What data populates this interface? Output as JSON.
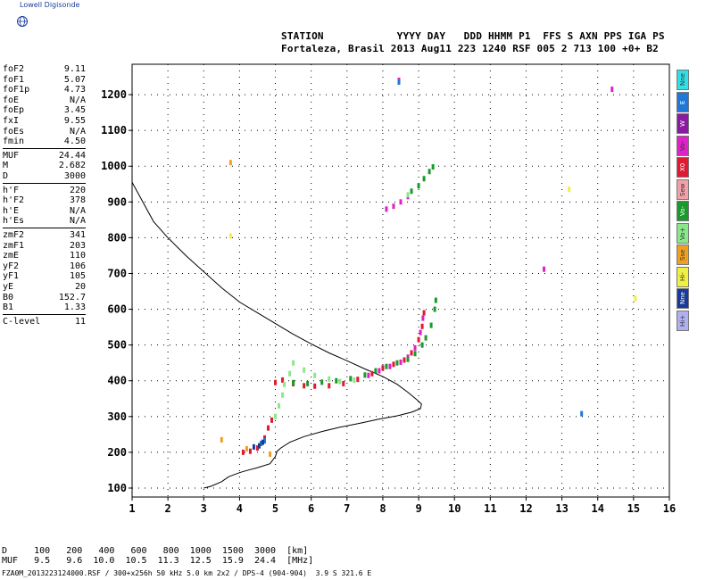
{
  "brand": "Lowell Digisonde",
  "header": {
    "line1": "STATION            YYYY DAY   DDD HHMM P1  FFS S AXN PPS IGA PS",
    "line2": "Fortaleza, Brasil 2013 Aug11 223 1240 RSF 005 2 713 100 +0+ B2"
  },
  "params": [
    {
      "label": "foF2",
      "value": "9.11"
    },
    {
      "label": "foF1",
      "value": "5.07"
    },
    {
      "label": "foF1p",
      "value": "4.73"
    },
    {
      "label": "foE",
      "value": "N/A"
    },
    {
      "label": "foEp",
      "value": "3.45"
    },
    {
      "label": "fxI",
      "value": "9.55"
    },
    {
      "label": "foEs",
      "value": "N/A"
    },
    {
      "label": "fmin",
      "value": "4.50"
    },
    {
      "label": "MUF",
      "value": "24.44"
    },
    {
      "label": "M",
      "value": "2.682"
    },
    {
      "label": "D",
      "value": "3000"
    },
    {
      "label": "h'F",
      "value": "220"
    },
    {
      "label": "h'F2",
      "value": "378"
    },
    {
      "label": "h'E",
      "value": "N/A"
    },
    {
      "label": "h'Es",
      "value": "N/A"
    },
    {
      "label": "zmF2",
      "value": "341"
    },
    {
      "label": "zmF1",
      "value": "203"
    },
    {
      "label": "zmE",
      "value": "110"
    },
    {
      "label": "yF2",
      "value": "106"
    },
    {
      "label": "yF1",
      "value": "105"
    },
    {
      "label": "yE",
      "value": "20"
    },
    {
      "label": "B0",
      "value": "152.7"
    },
    {
      "label": "B1",
      "value": "1.33"
    },
    {
      "label": "C-level",
      "value": "11"
    }
  ],
  "legend": [
    {
      "label": "Nne",
      "color": "#2fe0e8"
    },
    {
      "label": "E",
      "color": "#1f78d8"
    },
    {
      "label": "W",
      "color": "#8a1aa0"
    },
    {
      "label": "Vo-",
      "color": "#e020c8"
    },
    {
      "label": "X0",
      "color": "#e01a30"
    },
    {
      "label": "Sew",
      "color": "#f2a0a8"
    },
    {
      "label": "Vo-",
      "color": "#1a9a2a"
    },
    {
      "label": "Vo+",
      "color": "#8ae88a"
    },
    {
      "label": "Sse",
      "color": "#f0a020"
    },
    {
      "label": "Hi-",
      "color": "#f0f040"
    },
    {
      "label": "Nne",
      "color": "#1a3a9a"
    },
    {
      "label": "Hi+",
      "color": "#b0b0f0"
    }
  ],
  "footer": {
    "d_row": "D     100   200   400   600   800  1000  1500  3000  [km]",
    "muf_row": "MUF   9.5   9.6  10.0  10.5  11.3  12.5  15.9  24.4  [MHz]",
    "info": "FZA0M_2013223124000.RSF / 300+x256h 50 kHz 5.0 km 2x2 / DPS-4 (904-904)  3.9 S 321.6 E"
  },
  "chart_data": {
    "type": "scatter",
    "xlim": [
      1,
      16
    ],
    "ylim": [
      75,
      1285
    ],
    "x_ticks": [
      "1",
      "2",
      "3",
      "4",
      "5",
      "6",
      "7",
      "8",
      "9",
      "10",
      "11",
      "12",
      "13",
      "14",
      "15",
      "16"
    ],
    "y_ticks": [
      "100",
      "200",
      "300",
      "400",
      "500",
      "600",
      "700",
      "800",
      "900",
      "1000",
      "1100",
      "1200"
    ],
    "grid": true,
    "series": [
      {
        "color": "#e01a30",
        "points": [
          [
            4.1,
            200
          ],
          [
            4.3,
            203
          ],
          [
            4.5,
            212
          ],
          [
            4.7,
            240
          ],
          [
            4.8,
            268
          ],
          [
            4.9,
            290
          ],
          [
            5.0,
            395
          ],
          [
            5.2,
            402
          ],
          [
            5.5,
            392
          ],
          [
            5.8,
            386
          ],
          [
            6.1,
            385
          ],
          [
            6.5,
            386
          ],
          [
            6.9,
            392
          ],
          [
            7.3,
            404
          ],
          [
            7.7,
            420
          ],
          [
            8.0,
            436
          ],
          [
            8.3,
            446
          ],
          [
            8.6,
            458
          ],
          [
            8.8,
            478
          ],
          [
            9.0,
            515
          ],
          [
            9.1,
            552
          ],
          [
            9.15,
            590
          ]
        ]
      },
      {
        "color": "#e020c8",
        "points": [
          [
            7.6,
            415
          ],
          [
            7.9,
            428
          ],
          [
            8.2,
            440
          ],
          [
            8.5,
            452
          ],
          [
            8.7,
            466
          ],
          [
            8.9,
            492
          ],
          [
            9.05,
            535
          ],
          [
            9.12,
            575
          ],
          [
            8.1,
            880
          ],
          [
            8.3,
            888
          ],
          [
            8.5,
            900
          ],
          [
            8.7,
            915
          ],
          [
            8.45,
            1240
          ],
          [
            14.4,
            1215
          ],
          [
            12.5,
            712
          ]
        ]
      },
      {
        "color": "#1a9a2a",
        "points": [
          [
            5.5,
            395
          ],
          [
            5.9,
            392
          ],
          [
            6.3,
            396
          ],
          [
            6.7,
            400
          ],
          [
            7.1,
            406
          ],
          [
            7.5,
            416
          ],
          [
            7.8,
            428
          ],
          [
            8.1,
            440
          ],
          [
            8.4,
            450
          ],
          [
            8.7,
            460
          ],
          [
            8.9,
            476
          ],
          [
            9.1,
            500
          ],
          [
            9.2,
            520
          ],
          [
            9.35,
            555
          ],
          [
            9.45,
            600
          ],
          [
            9.48,
            625
          ],
          [
            8.8,
            930
          ],
          [
            9.0,
            945
          ],
          [
            9.15,
            965
          ],
          [
            9.3,
            985
          ],
          [
            9.4,
            998
          ]
        ]
      },
      {
        "color": "#8ae88a",
        "points": [
          [
            5.1,
            330
          ],
          [
            5.2,
            360
          ],
          [
            5.25,
            390
          ],
          [
            5.4,
            420
          ],
          [
            5.5,
            450
          ],
          [
            5.8,
            430
          ],
          [
            6.1,
            415
          ],
          [
            6.5,
            405
          ],
          [
            6.8,
            398
          ],
          [
            7.2,
            402
          ],
          [
            5.0,
            300
          ],
          [
            8.7,
            920
          ]
        ]
      },
      {
        "color": "#f0a020",
        "points": [
          [
            3.5,
            235
          ],
          [
            4.2,
            210
          ],
          [
            4.85,
            195
          ],
          [
            3.75,
            1010
          ]
        ]
      },
      {
        "color": "#1f78d8",
        "points": [
          [
            4.6,
            225
          ],
          [
            4.7,
            232
          ],
          [
            13.55,
            308
          ],
          [
            8.45,
            1235
          ]
        ]
      },
      {
        "color": "#1a3a9a",
        "points": [
          [
            4.4,
            215
          ],
          [
            4.55,
            218
          ],
          [
            4.65,
            228
          ]
        ]
      },
      {
        "color": "#f0f040",
        "points": [
          [
            3.75,
            805
          ],
          [
            13.2,
            935
          ],
          [
            15.05,
            630
          ]
        ]
      }
    ],
    "profile": {
      "color": "#000000",
      "points": [
        [
          1.0,
          955
        ],
        [
          1.3,
          900
        ],
        [
          1.6,
          845
        ],
        [
          2.0,
          800
        ],
        [
          2.5,
          750
        ],
        [
          3.0,
          705
        ],
        [
          3.5,
          660
        ],
        [
          4.0,
          620
        ],
        [
          4.5,
          590
        ],
        [
          5.0,
          560
        ],
        [
          5.5,
          530
        ],
        [
          6.0,
          503
        ],
        [
          6.5,
          478
        ],
        [
          7.0,
          456
        ],
        [
          7.5,
          433
        ],
        [
          8.0,
          412
        ],
        [
          8.4,
          390
        ],
        [
          8.7,
          368
        ],
        [
          8.95,
          347
        ],
        [
          9.08,
          335
        ],
        [
          9.05,
          322
        ],
        [
          8.8,
          312
        ],
        [
          8.4,
          302
        ],
        [
          7.9,
          293
        ],
        [
          7.4,
          282
        ],
        [
          6.8,
          270
        ],
        [
          6.3,
          258
        ],
        [
          5.8,
          244
        ],
        [
          5.4,
          228
        ],
        [
          5.15,
          212
        ],
        [
          5.05,
          203
        ],
        [
          5.0,
          188
        ],
        [
          4.85,
          168
        ],
        [
          4.5,
          157
        ],
        [
          4.2,
          149
        ],
        [
          4.0,
          143
        ],
        [
          3.7,
          132
        ],
        [
          3.5,
          118
        ],
        [
          3.2,
          105
        ],
        [
          3.0,
          100
        ]
      ]
    }
  }
}
